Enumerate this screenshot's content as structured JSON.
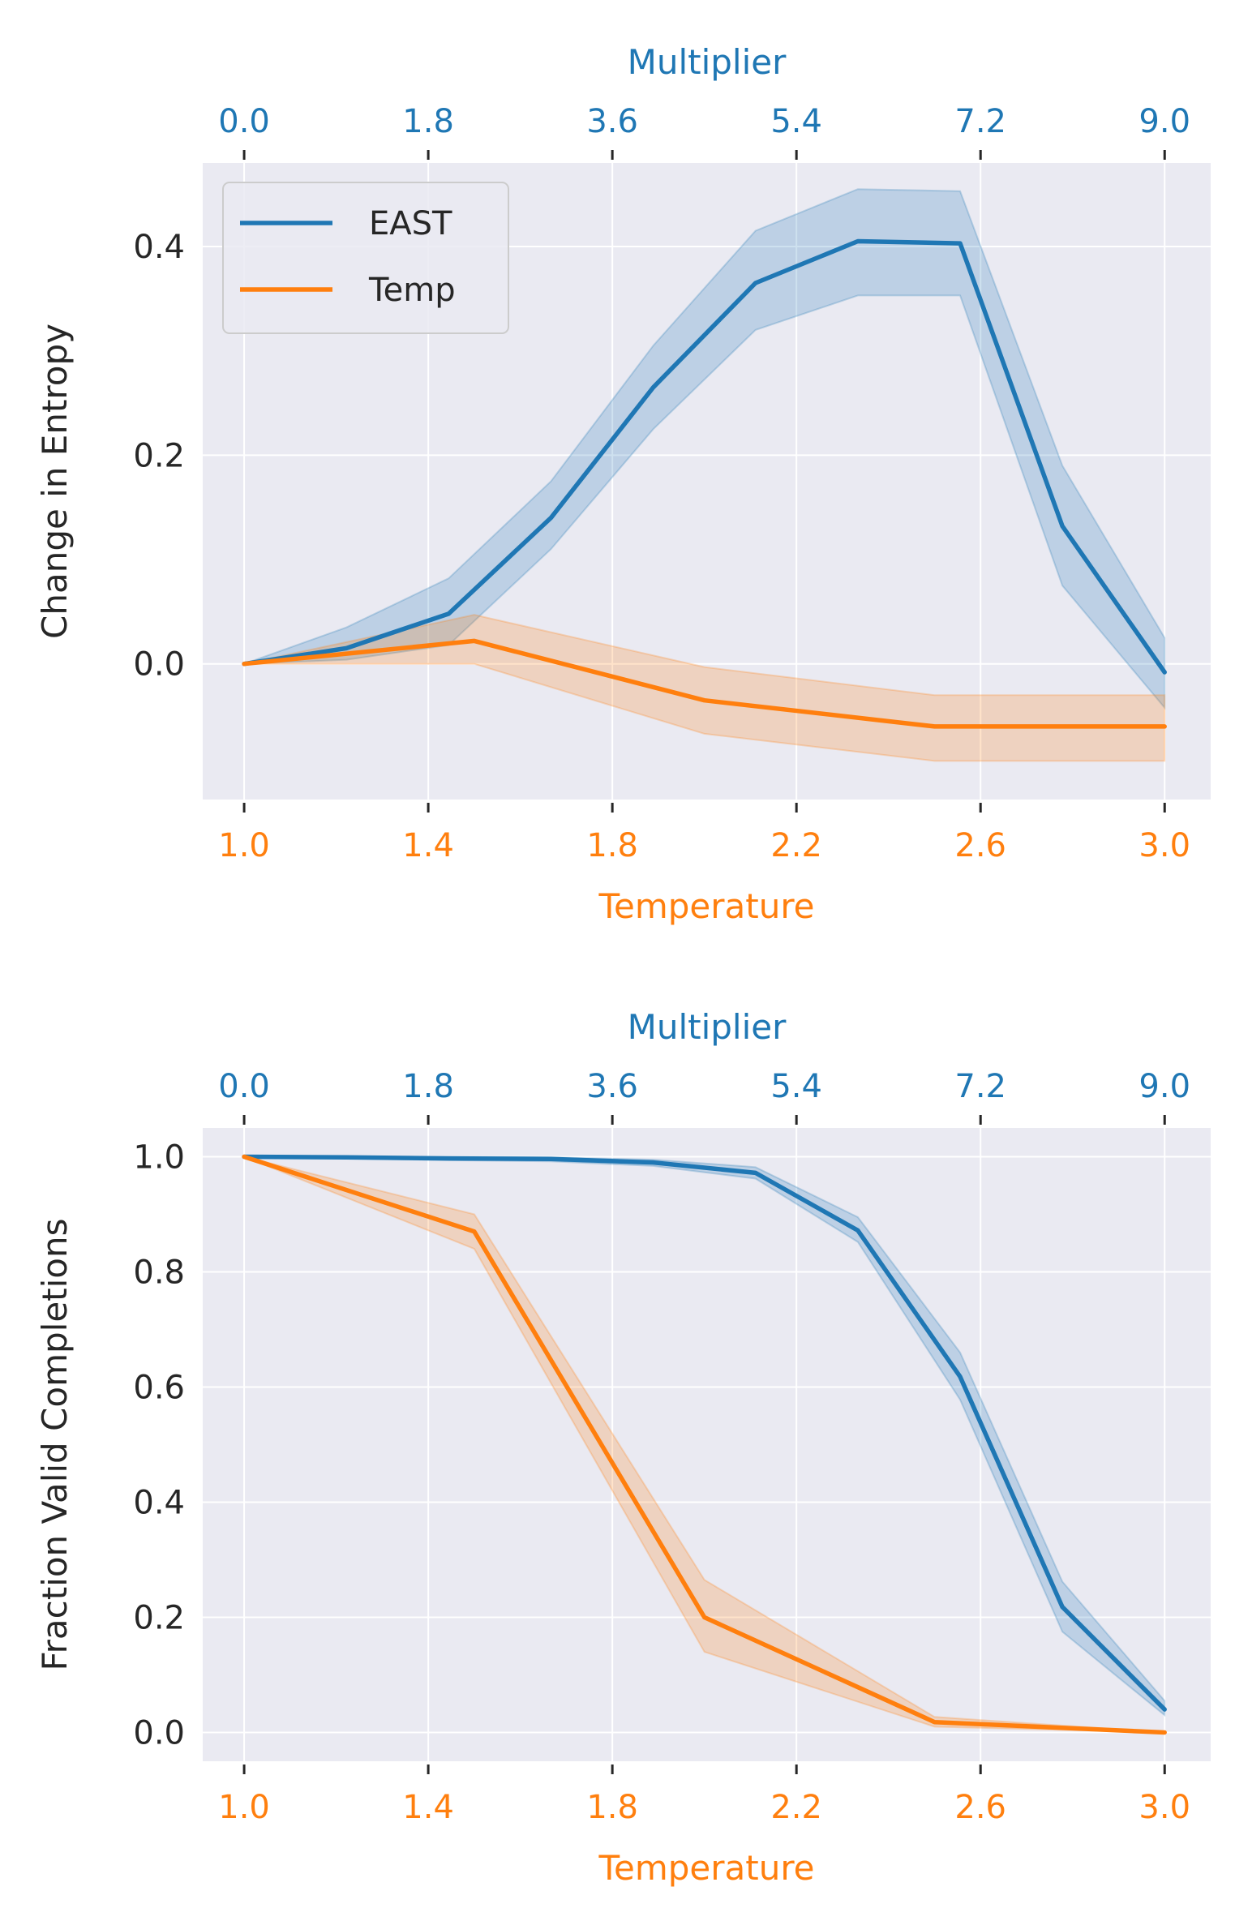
{
  "colors": {
    "east": "#1f77b4",
    "temp": "#ff7f0e",
    "panel_bg": "#eaeaf2",
    "grid": "#ffffff",
    "text": "#262626"
  },
  "legend": {
    "entries": [
      "EAST",
      "Temp"
    ]
  },
  "chart_data": [
    {
      "type": "line",
      "id": "entropy",
      "title": "",
      "xlabel": "Temperature",
      "x2label": "Multiplier",
      "ylabel": "Change in Entropy",
      "xlim": [
        0.91,
        3.1
      ],
      "ylim": [
        -0.13,
        0.48
      ],
      "grid": true,
      "legend_position": "top-left",
      "x_ticks": [
        "1.0",
        "1.4",
        "1.8",
        "2.2",
        "2.6",
        "3.0"
      ],
      "x2_ticks": [
        "0.0",
        "1.8",
        "3.6",
        "5.4",
        "7.2",
        "9.0"
      ],
      "y_ticks": [
        "0.0",
        "0.2",
        "0.4"
      ],
      "series": [
        {
          "name": "EAST",
          "multiplier": [
            0.0,
            1.0,
            2.0,
            3.0,
            4.0,
            5.0,
            6.0,
            7.0,
            8.0,
            9.0
          ],
          "values": [
            0.0,
            0.015,
            0.048,
            0.14,
            0.265,
            0.365,
            0.405,
            0.403,
            0.132,
            -0.008
          ],
          "lower": [
            0.0,
            0.004,
            0.018,
            0.11,
            0.225,
            0.32,
            0.353,
            0.353,
            0.075,
            -0.042
          ],
          "upper": [
            0.0,
            0.035,
            0.082,
            0.175,
            0.305,
            0.415,
            0.455,
            0.453,
            0.19,
            0.025
          ]
        },
        {
          "name": "Temp",
          "x": [
            1.0,
            1.5,
            2.0,
            2.5,
            3.0
          ],
          "values": [
            0.0,
            0.022,
            -0.035,
            -0.06,
            -0.06
          ],
          "lower": [
            0.0,
            0.0,
            -0.067,
            -0.093,
            -0.093
          ],
          "upper": [
            0.0,
            0.047,
            -0.003,
            -0.03,
            -0.03
          ]
        }
      ]
    },
    {
      "type": "line",
      "id": "validity",
      "title": "",
      "xlabel": "Temperature",
      "x2label": "Multiplier",
      "ylabel": "Fraction Valid Completions",
      "xlim": [
        0.91,
        3.1
      ],
      "ylim": [
        -0.05,
        1.05
      ],
      "grid": true,
      "x_ticks": [
        "1.0",
        "1.4",
        "1.8",
        "2.2",
        "2.6",
        "3.0"
      ],
      "x2_ticks": [
        "0.0",
        "1.8",
        "3.6",
        "5.4",
        "7.2",
        "9.0"
      ],
      "y_ticks": [
        "0.0",
        "0.2",
        "0.4",
        "0.6",
        "0.8",
        "1.0"
      ],
      "series": [
        {
          "name": "EAST",
          "multiplier": [
            0.0,
            1.0,
            2.0,
            3.0,
            4.0,
            5.0,
            6.0,
            7.0,
            8.0,
            9.0
          ],
          "values": [
            1.0,
            0.999,
            0.997,
            0.996,
            0.99,
            0.972,
            0.872,
            0.618,
            0.218,
            0.04
          ],
          "lower": [
            1.0,
            0.997,
            0.994,
            0.992,
            0.984,
            0.962,
            0.852,
            0.578,
            0.175,
            0.03
          ],
          "upper": [
            1.0,
            1.0,
            1.0,
            0.999,
            0.995,
            0.982,
            0.895,
            0.66,
            0.262,
            0.055
          ]
        },
        {
          "name": "Temp",
          "x": [
            1.0,
            1.5,
            2.0,
            2.5,
            3.0
          ],
          "values": [
            1.0,
            0.87,
            0.2,
            0.018,
            0.0
          ],
          "lower": [
            1.0,
            0.84,
            0.14,
            0.01,
            0.0
          ],
          "upper": [
            1.0,
            0.9,
            0.265,
            0.027,
            0.0
          ]
        }
      ]
    }
  ]
}
